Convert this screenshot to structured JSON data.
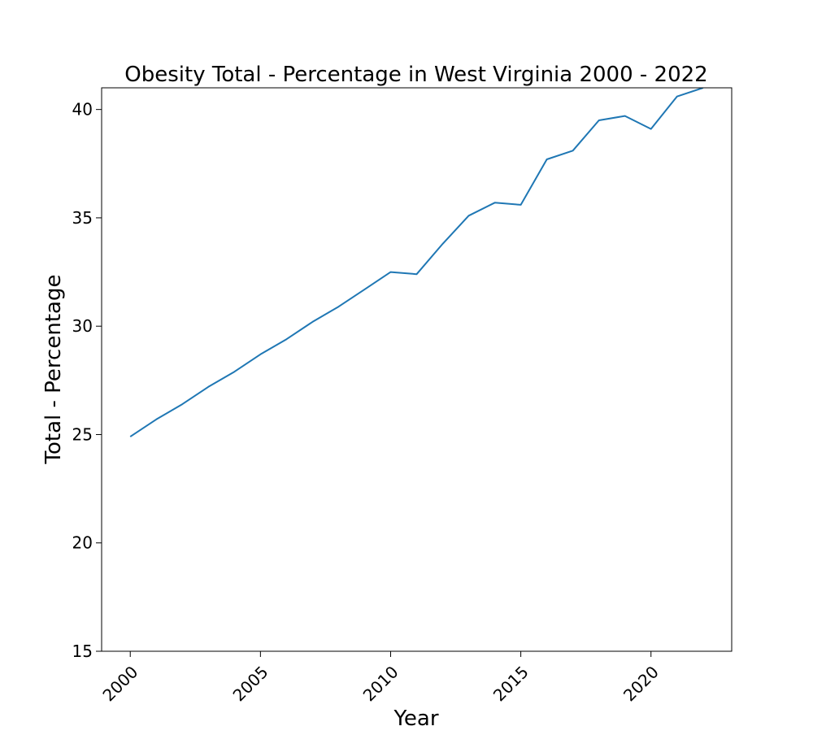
{
  "chart_data": {
    "type": "line",
    "title": "Obesity Total - Percentage in West Virginia 2000 - 2022",
    "xlabel": "Year",
    "ylabel": "Total - Percentage",
    "xlim": [
      1998.9,
      2023.1
    ],
    "ylim": [
      15,
      41
    ],
    "xticks": [
      2000,
      2005,
      2010,
      2015,
      2020
    ],
    "xtick_labels": [
      "2000",
      "2005",
      "2010",
      "2015",
      "2020"
    ],
    "yticks": [
      15,
      20,
      25,
      30,
      35,
      40
    ],
    "ytick_labels": [
      "15",
      "20",
      "25",
      "30",
      "35",
      "40"
    ],
    "grid": false,
    "legend": "none",
    "series": [
      {
        "color": "#1f77b4",
        "x": [
          2000,
          2001,
          2002,
          2003,
          2004,
          2005,
          2006,
          2007,
          2008,
          2009,
          2010,
          2011,
          2012,
          2013,
          2014,
          2015,
          2016,
          2017,
          2018,
          2019,
          2020,
          2021,
          2022
        ],
        "values": [
          24.9,
          25.7,
          26.4,
          27.2,
          27.9,
          28.7,
          29.4,
          30.2,
          30.9,
          31.7,
          32.5,
          32.4,
          33.8,
          35.1,
          35.7,
          35.6,
          37.7,
          38.1,
          39.5,
          39.7,
          39.1,
          40.6,
          41.0
        ]
      }
    ]
  }
}
